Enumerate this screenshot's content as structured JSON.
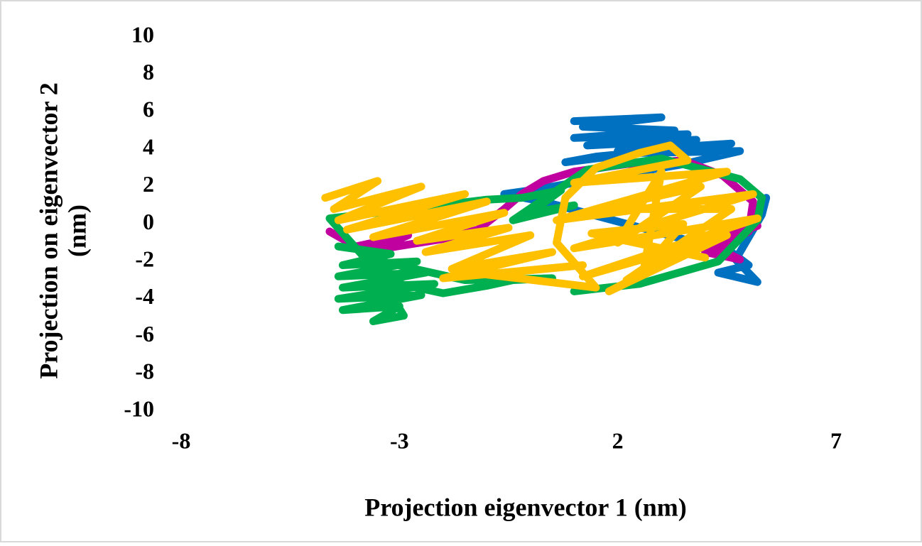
{
  "chart_data": {
    "type": "line",
    "xlabel": "Projection eigenvector 1 (nm)",
    "ylabel": [
      "Projection on eigenvector 2",
      "(nm)"
    ],
    "xlim": [
      -8,
      7
    ],
    "xticks": [
      -8,
      -3,
      2,
      7
    ],
    "ylim": [
      -10,
      10
    ],
    "yticks": [
      -10,
      -8,
      -6,
      -4,
      -2,
      0,
      2,
      4,
      6,
      8,
      10
    ],
    "grid": false,
    "series": [
      {
        "color": "#0070c0",
        "x": [
          1.0,
          3.0,
          1.2,
          3.3,
          1.0,
          3.6,
          1.3,
          3.8,
          2.0,
          4.6,
          1.5,
          0.8,
          2.5,
          4.8,
          3.5,
          0.0,
          -0.6,
          0.3,
          4.6,
          5.0,
          4.3,
          5.2,
          4.7,
          5.3,
          5.4
        ],
        "values": [
          5.5,
          5.7,
          5.2,
          5.0,
          4.6,
          4.8,
          4.2,
          4.5,
          3.9,
          4.3,
          3.6,
          3.3,
          3.8,
          3.9,
          3.2,
          1.8,
          1.6,
          1.2,
          -1.5,
          -2.2,
          -2.6,
          -3.1,
          -1.9,
          0.5,
          1.4
        ]
      },
      {
        "color": "#c0009f",
        "x": [
          -4.6,
          -4.0,
          -2.8,
          -3.6,
          -2.0,
          -1.2,
          -0.6,
          -0.2,
          0.3,
          1.0,
          2.2,
          3.5,
          4.4,
          5.1,
          5.0,
          4.3,
          4.8,
          4.0,
          4.6,
          5.2
        ],
        "values": [
          -0.4,
          -1.2,
          -0.6,
          -1.4,
          -0.8,
          -0.3,
          0.8,
          1.6,
          2.3,
          2.8,
          3.2,
          3.4,
          2.6,
          1.2,
          -0.4,
          -1.3,
          -1.9,
          -1.5,
          -0.6,
          -0.1
        ]
      },
      {
        "color": "#00b050",
        "x": [
          -4.4,
          -3.2,
          -4.3,
          -2.6,
          -4.4,
          -2.4,
          -4.3,
          -2.2,
          -4.4,
          -2.5,
          -4.3,
          -3.0,
          -3.6,
          -2.9,
          -3.4,
          -2.0,
          -1.0,
          -0.4,
          0.5,
          -1.5,
          -3.8,
          -4.6,
          -1.0,
          -0.2,
          0.7,
          0.0,
          1.0,
          -0.4,
          1.3,
          3.0,
          4.8,
          5.3,
          5.2,
          4.3,
          2.5,
          1.0
        ],
        "values": [
          -1.2,
          -1.6,
          -2.2,
          -2.0,
          -2.8,
          -2.6,
          -3.4,
          -3.2,
          -4.0,
          -3.8,
          -4.6,
          -4.4,
          -5.2,
          -4.9,
          -3.0,
          -3.7,
          -3.3,
          -3.0,
          -2.9,
          -3.0,
          -1.8,
          0.3,
          1.3,
          1.4,
          1.8,
          0.6,
          1.0,
          0.2,
          2.9,
          3.5,
          2.4,
          1.4,
          0.2,
          -2.0,
          -3.2,
          -3.6
        ]
      },
      {
        "color": "#ffc000",
        "x": [
          -4.7,
          -3.5,
          -4.5,
          -2.5,
          -4.4,
          -1.5,
          -4.2,
          -1.0,
          -3.6,
          -0.6,
          -2.6,
          -0.5,
          -2.4,
          0.0,
          -1.8,
          0.5,
          -2.0,
          1.2,
          -1.0,
          1.5,
          0.6,
          0.8,
          1.5,
          2.5,
          3.2,
          3.6,
          1.0,
          4.5,
          0.6,
          5.1,
          1.0,
          5.2,
          1.2,
          4.5,
          1.8,
          3.8,
          2.2,
          4.6,
          1.6,
          3.9,
          2.0,
          3.0,
          2.6,
          3.5,
          1.4,
          4.0
        ],
        "values": [
          1.4,
          2.3,
          0.8,
          2.0,
          0.2,
          1.6,
          -0.3,
          1.2,
          -0.7,
          0.6,
          -0.9,
          -0.2,
          -1.5,
          -0.6,
          -2.4,
          -1.5,
          -2.9,
          -2.2,
          -2.7,
          -3.4,
          -1.0,
          1.4,
          3.0,
          3.8,
          4.2,
          3.4,
          2.2,
          2.8,
          0.2,
          1.6,
          -1.3,
          0.3,
          -2.8,
          -0.6,
          -3.6,
          -1.2,
          -3.0,
          0.8,
          0.8,
          2.0,
          -1.0,
          2.8,
          -2.4,
          0.0,
          -0.5,
          -1.8
        ]
      }
    ]
  }
}
